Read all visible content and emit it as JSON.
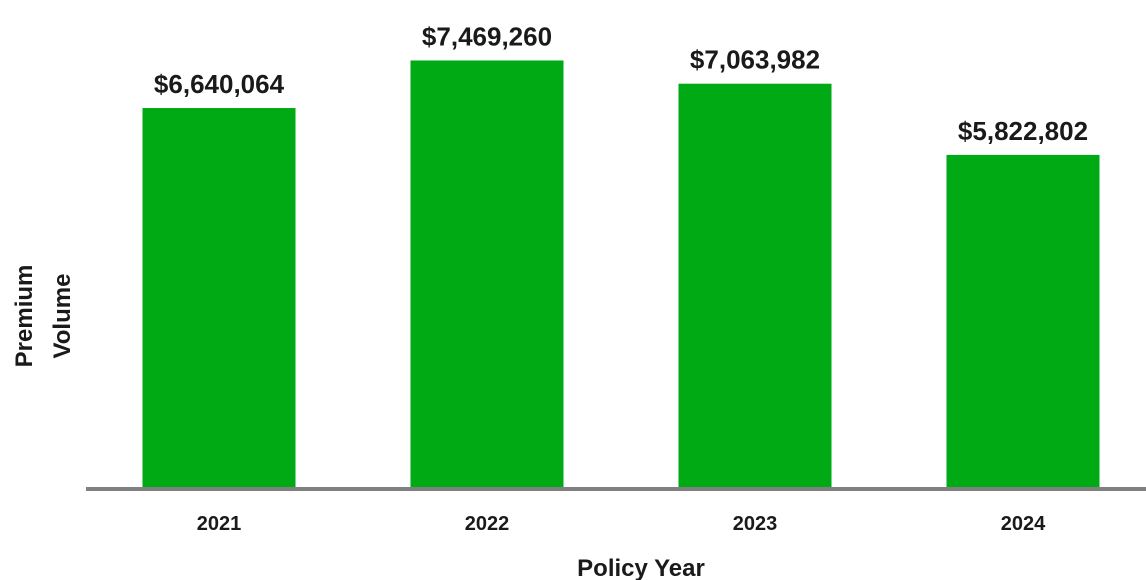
{
  "chart_data": {
    "type": "bar",
    "categories": [
      "2021",
      "2022",
      "2023",
      "2024"
    ],
    "values": [
      6640064,
      7469260,
      7063982,
      5822802
    ],
    "value_labels": [
      "$6,640,064",
      "$7,469,260",
      "$7,063,982",
      "$5,822,802"
    ],
    "title": "",
    "xlabel": "Policy Year",
    "ylabel_lines": [
      "Premium",
      "Volume"
    ],
    "ylim": [
      0,
      8000000
    ],
    "grid": false,
    "legend": "none",
    "bar_color": "#00AA14",
    "axis_color": "#808080",
    "text_color": "#1a1a1a"
  }
}
